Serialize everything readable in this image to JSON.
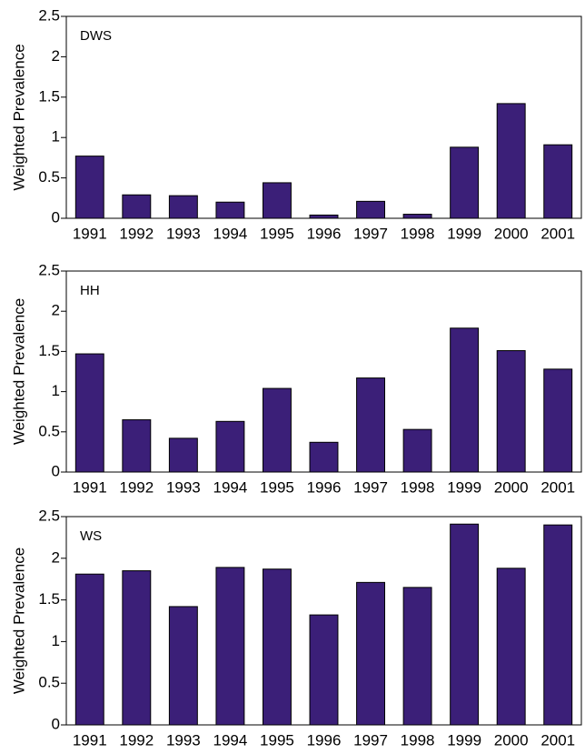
{
  "chart_data": [
    {
      "type": "bar",
      "annotation": "DWS",
      "ylabel": "Weighted Prevalence",
      "categories": [
        "1991",
        "1992",
        "1993",
        "1994",
        "1995",
        "1996",
        "1997",
        "1998",
        "1999",
        "2000",
        "2001"
      ],
      "values": [
        0.77,
        0.29,
        0.28,
        0.2,
        0.44,
        0.04,
        0.21,
        0.05,
        0.88,
        1.42,
        0.91
      ],
      "color": "#3b1f78",
      "ylim": [
        0,
        2.5
      ],
      "yticks": [
        0,
        0.5,
        1,
        1.5,
        2,
        2.5
      ]
    },
    {
      "type": "bar",
      "annotation": "HH",
      "ylabel": "Weighted Prevalence",
      "categories": [
        "1991",
        "1992",
        "1993",
        "1994",
        "1995",
        "1996",
        "1997",
        "1998",
        "1999",
        "2000",
        "2001"
      ],
      "values": [
        1.47,
        0.65,
        0.42,
        0.63,
        1.04,
        0.37,
        1.17,
        0.53,
        1.79,
        1.51,
        1.28
      ],
      "color": "#3b1f78",
      "ylim": [
        0,
        2.5
      ],
      "yticks": [
        0,
        0.5,
        1,
        1.5,
        2,
        2.5
      ]
    },
    {
      "type": "bar",
      "annotation": "WS",
      "ylabel": "Weighted Prevalence",
      "categories": [
        "1991",
        "1992",
        "1993",
        "1994",
        "1995",
        "1996",
        "1997",
        "1998",
        "1999",
        "2000",
        "2001"
      ],
      "values": [
        1.81,
        1.85,
        1.42,
        1.89,
        1.87,
        1.32,
        1.71,
        1.65,
        2.41,
        1.88,
        2.4
      ],
      "color": "#3b1f78",
      "ylim": [
        0,
        2.5
      ],
      "yticks": [
        0,
        0.5,
        1,
        1.5,
        2,
        2.5
      ]
    }
  ]
}
